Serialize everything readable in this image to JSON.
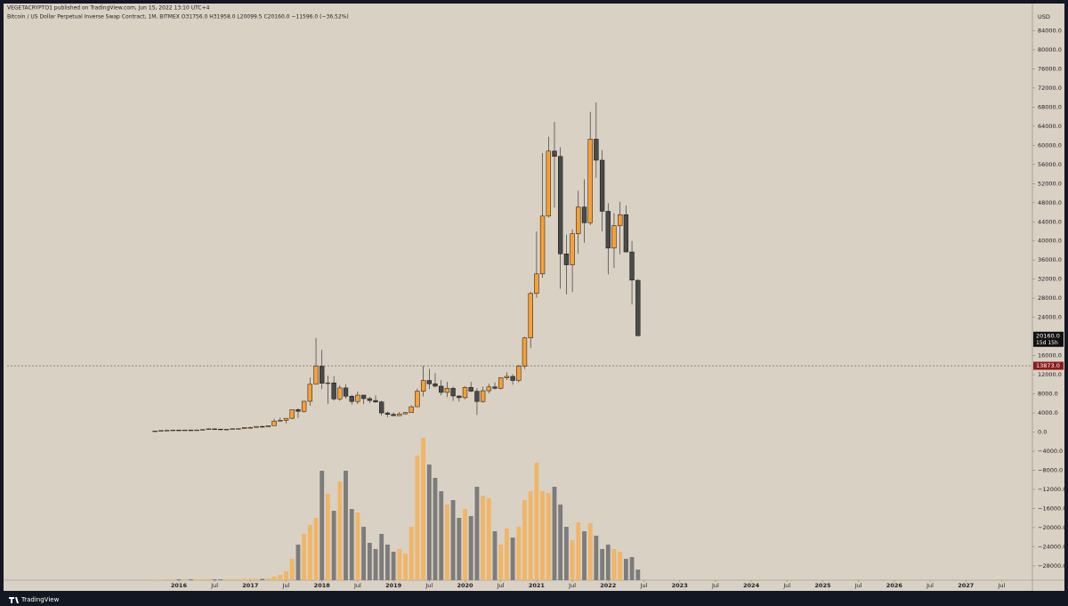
{
  "header": "VEGETACRYPTO1 published on TradingView.com, Jun 15, 2022 13:10 UTC+4",
  "footer": "TradingView",
  "chart_data": {
    "type": "candlestick",
    "title": "Bitcoin / US Dollar Perpetual Inverse Swap Contract, 1M, BITMEX  O31756.0  H31958.0  L20099.5  C20160.0  −11596.0 (−36.52%)",
    "y_axis_label": "USD",
    "up_color": "#f7a035",
    "down_color": "#4a4a4a",
    "volume_up_color": "#f0b566",
    "volume_down_color": "#7c7c7c",
    "x": [
      2015.667,
      2015.75,
      2015.833,
      2015.917,
      2016,
      2016.083,
      2016.167,
      2016.25,
      2016.333,
      2016.417,
      2016.5,
      2016.583,
      2016.667,
      2016.75,
      2016.833,
      2016.917,
      2017,
      2017.083,
      2017.167,
      2017.25,
      2017.333,
      2017.417,
      2017.5,
      2017.583,
      2017.667,
      2017.75,
      2017.833,
      2017.917,
      2018,
      2018.083,
      2018.167,
      2018.25,
      2018.333,
      2018.417,
      2018.5,
      2018.583,
      2018.667,
      2018.75,
      2018.833,
      2018.917,
      2019,
      2019.083,
      2019.167,
      2019.25,
      2019.333,
      2019.417,
      2019.5,
      2019.583,
      2019.667,
      2019.75,
      2019.833,
      2019.917,
      2020,
      2020.083,
      2020.167,
      2020.25,
      2020.333,
      2020.417,
      2020.5,
      2020.583,
      2020.667,
      2020.75,
      2020.833,
      2020.917,
      2021,
      2021.083,
      2021.167,
      2021.25,
      2021.333,
      2021.417,
      2021.5,
      2021.583,
      2021.667,
      2021.75,
      2021.833,
      2021.917,
      2022,
      2022.083,
      2022.167,
      2022.25,
      2022.333,
      2022.417
    ],
    "open": [
      230,
      236,
      314,
      377,
      430,
      368,
      437,
      416,
      448,
      531,
      673,
      624,
      573,
      608,
      700,
      742,
      960,
      965,
      1190,
      1070,
      1350,
      2300,
      2480,
      2870,
      4700,
      4340,
      6440,
      10000,
      13800,
      10200,
      10300,
      6930,
      9240,
      7500,
      6400,
      7730,
      7000,
      6600,
      6300,
      4000,
      3700,
      3430,
      3800,
      4100,
      5300,
      8550,
      10800,
      10100,
      9600,
      8300,
      9150,
      7550,
      7200,
      9350,
      8550,
      6400,
      8650,
      9450,
      9150,
      11350,
      11650,
      10800,
      13800,
      19700,
      29000,
      33100,
      45200,
      58800,
      57700,
      37300,
      35000,
      41500,
      47100,
      43800,
      61300,
      56900,
      46200,
      38500,
      43200,
      45500,
      37700,
      31756
    ],
    "high": [
      240,
      330,
      500,
      465,
      460,
      440,
      440,
      470,
      550,
      780,
      700,
      630,
      630,
      720,
      760,
      980,
      1150,
      1200,
      1290,
      1350,
      2760,
      3000,
      2950,
      4750,
      5000,
      6470,
      11400,
      19700,
      17200,
      11800,
      11700,
      9800,
      10000,
      7800,
      8500,
      7780,
      7400,
      7700,
      6600,
      4300,
      4100,
      4200,
      4150,
      5600,
      9100,
      13900,
      13200,
      12350,
      10900,
      10500,
      9500,
      7700,
      9600,
      10500,
      9200,
      9500,
      10100,
      10400,
      11450,
      12500,
      12100,
      14100,
      19900,
      29300,
      42000,
      58400,
      61800,
      64900,
      59600,
      41300,
      42400,
      50500,
      52900,
      67000,
      69000,
      59000,
      47900,
      45800,
      48200,
      47400,
      40000,
      31958
    ],
    "low": [
      225,
      236,
      300,
      350,
      360,
      365,
      400,
      415,
      440,
      530,
      600,
      470,
      570,
      600,
      680,
      740,
      750,
      920,
      890,
      1060,
      1340,
      2200,
      1830,
      2700,
      2970,
      4100,
      5500,
      10000,
      9000,
      5900,
      6600,
      6500,
      7000,
      5750,
      5850,
      5880,
      6100,
      6100,
      3500,
      3100,
      3350,
      3400,
      3700,
      4050,
      5300,
      7450,
      9000,
      9350,
      7700,
      7300,
      6500,
      6400,
      6850,
      8400,
      3600,
      6150,
      8100,
      8900,
      8950,
      10900,
      9900,
      10400,
      13200,
      17600,
      28100,
      32300,
      44900,
      47000,
      30000,
      28800,
      29300,
      37300,
      39600,
      43300,
      53200,
      42000,
      33000,
      34300,
      37200,
      37600,
      26700,
      20099.5
    ],
    "close": [
      236,
      314,
      377,
      430,
      368,
      437,
      416,
      448,
      531,
      673,
      624,
      573,
      608,
      700,
      742,
      960,
      965,
      1190,
      1070,
      1350,
      2300,
      2480,
      2870,
      4700,
      4340,
      6440,
      10000,
      13800,
      10200,
      10300,
      6930,
      9240,
      7500,
      6400,
      7730,
      7000,
      6600,
      6300,
      4000,
      3700,
      3430,
      3800,
      4100,
      5300,
      8550,
      10800,
      10100,
      9600,
      8300,
      9150,
      7550,
      7200,
      9350,
      8550,
      6400,
      8650,
      9450,
      9150,
      11350,
      11650,
      10800,
      13800,
      19700,
      29000,
      33100,
      45200,
      58800,
      57700,
      37300,
      35000,
      41500,
      47100,
      43800,
      61300,
      56900,
      46200,
      38500,
      43200,
      45500,
      37700,
      31800,
      20160
    ],
    "volume": [
      0.5,
      0.5,
      1,
      1,
      1,
      1,
      1,
      1,
      1,
      1.5,
      1,
      1,
      1,
      1,
      1,
      1.5,
      1.5,
      1.5,
      1.5,
      2,
      4,
      6,
      10,
      24,
      40,
      52,
      62,
      70,
      123,
      97,
      78,
      111,
      123,
      80,
      76,
      60,
      42,
      35,
      52,
      40,
      32,
      35,
      30,
      60,
      140,
      160,
      130,
      115,
      100,
      85,
      90,
      70,
      80,
      72,
      105,
      95,
      92,
      55,
      40,
      58,
      48,
      60,
      90,
      100,
      132,
      100,
      98,
      105,
      85,
      60,
      45,
      65,
      55,
      64,
      50,
      35,
      40,
      35,
      32,
      24,
      26,
      12
    ],
    "last_price": {
      "value": 20160,
      "label": "20160.0",
      "countdown": "15d 15h"
    },
    "price_line": {
      "value": 13873,
      "label": "13873.0"
    },
    "ylim": [
      -31000,
      88000
    ],
    "yticks": [
      {
        "value": 84000,
        "label": "84000.0"
      },
      {
        "value": 80000,
        "label": "80000.0"
      },
      {
        "value": 76000,
        "label": "76000.0"
      },
      {
        "value": 72000,
        "label": "72000.0"
      },
      {
        "value": 68000,
        "label": "68000.0"
      },
      {
        "value": 64000,
        "label": "64000.0"
      },
      {
        "value": 60000,
        "label": "60000.0"
      },
      {
        "value": 56000,
        "label": "56000.0"
      },
      {
        "value": 52000,
        "label": "52000.0"
      },
      {
        "value": 48000,
        "label": "48000.0"
      },
      {
        "value": 44000,
        "label": "44000.0"
      },
      {
        "value": 40000,
        "label": "40000.0"
      },
      {
        "value": 36000,
        "label": "36000.0"
      },
      {
        "value": 32000,
        "label": "32000.0"
      },
      {
        "value": 28000,
        "label": "28000.0"
      },
      {
        "value": 24000,
        "label": "24000.0"
      },
      {
        "value": 16000,
        "label": "16000.0"
      },
      {
        "value": 12000,
        "label": "12000.0"
      },
      {
        "value": 8000,
        "label": "8000.0"
      },
      {
        "value": 4000,
        "label": "4000.0"
      },
      {
        "value": 0,
        "label": "0.0"
      },
      {
        "value": -4000,
        "label": "−4000.0"
      },
      {
        "value": -8000,
        "label": "−8000.0"
      },
      {
        "value": -12000,
        "label": "−12000.0"
      },
      {
        "value": -16000,
        "label": "−16000.0"
      },
      {
        "value": -20000,
        "label": "−20000.0"
      },
      {
        "value": -24000,
        "label": "−24000.0"
      },
      {
        "value": -28000,
        "label": "−28000.0"
      }
    ],
    "xlim": [
      2013.6,
      2027.93
    ],
    "xticks": [
      {
        "value": 2016,
        "label": "2016"
      },
      {
        "value": 2016.5,
        "label": "Jul"
      },
      {
        "value": 2017,
        "label": "2017"
      },
      {
        "value": 2017.5,
        "label": "Jul"
      },
      {
        "value": 2018,
        "label": "2018"
      },
      {
        "value": 2018.5,
        "label": "Jul"
      },
      {
        "value": 2019,
        "label": "2019"
      },
      {
        "value": 2019.5,
        "label": "Jul"
      },
      {
        "value": 2020,
        "label": "2020"
      },
      {
        "value": 2020.5,
        "label": "Jul"
      },
      {
        "value": 2021,
        "label": "2021"
      },
      {
        "value": 2021.5,
        "label": "Jul"
      },
      {
        "value": 2022,
        "label": "2022"
      },
      {
        "value": 2022.5,
        "label": "Jul"
      },
      {
        "value": 2023,
        "label": "2023"
      },
      {
        "value": 2023.5,
        "label": "Jul"
      },
      {
        "value": 2024,
        "label": "2024"
      },
      {
        "value": 2024.5,
        "label": "Jul"
      },
      {
        "value": 2025,
        "label": "2025"
      },
      {
        "value": 2025.5,
        "label": "Jul"
      },
      {
        "value": 2026,
        "label": "2026"
      },
      {
        "value": 2026.5,
        "label": "Jul"
      },
      {
        "value": 2027,
        "label": "2027"
      },
      {
        "value": 2027.5,
        "label": "Jul"
      }
    ]
  }
}
